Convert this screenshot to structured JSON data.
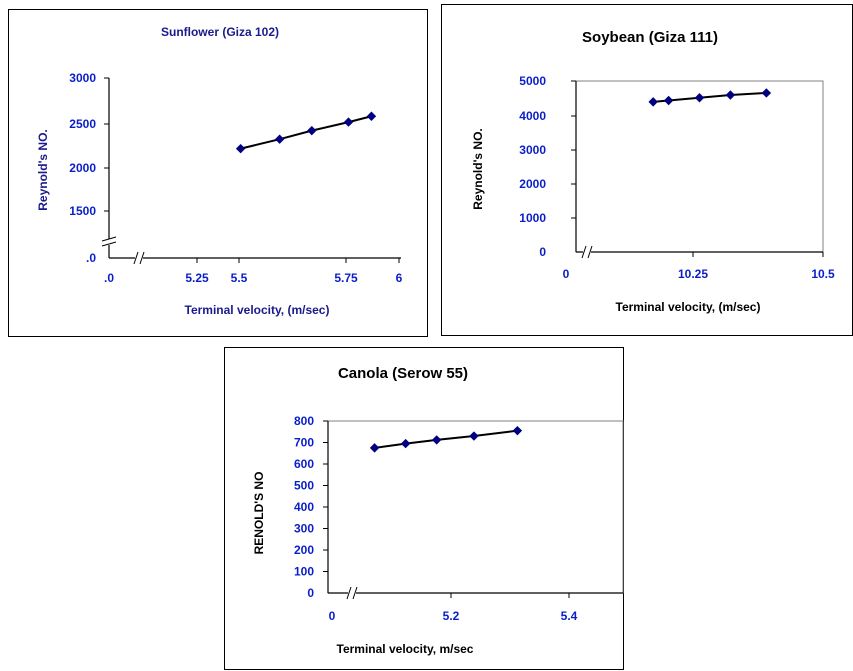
{
  "chart_data": [
    {
      "type": "line",
      "title": "Sunflower (Giza 102)",
      "xlabel": "Terminal velocity, (m/sec)",
      "ylabel": "Reynold's NO.",
      "x_ticks": [
        ".0",
        "5.25",
        "5.5",
        "5.75",
        "6"
      ],
      "y_ticks": [
        ".0",
        "1500",
        "2000",
        "2500",
        "3000"
      ],
      "xlim": [
        5.12,
        6.0
      ],
      "ylim": [
        1000,
        3000
      ],
      "grid": false,
      "axis_break": true,
      "x": [
        5.31,
        5.48,
        5.62,
        5.78,
        5.88
      ],
      "series": [
        {
          "values": [
            2215,
            2320,
            2415,
            2510,
            2575
          ],
          "color": "#000080"
        }
      ]
    },
    {
      "type": "line",
      "title": "Soybean (Giza 111)",
      "xlabel": "Terminal velocity, (m/sec)",
      "ylabel": "Reynold's NO.",
      "x_ticks": [
        "0",
        "10.25",
        "10.5"
      ],
      "y_ticks": [
        "0",
        "1000",
        "2000",
        "3000",
        "4000",
        "5000"
      ],
      "xlim": [
        10.02,
        10.5
      ],
      "ylim": [
        0,
        5000
      ],
      "grid": false,
      "axis_break": true,
      "x": [
        10.17,
        10.2,
        10.26,
        10.32,
        10.39
      ],
      "series": [
        {
          "values": [
            4390,
            4430,
            4510,
            4590,
            4650
          ],
          "color": "#000080"
        }
      ]
    },
    {
      "type": "line",
      "title": "Canola (Serow 55)",
      "xlabel": "Terminal velocity, m/sec",
      "ylabel": "RENOLD'S NO",
      "x_ticks": [
        "0",
        "5.2",
        "5.4"
      ],
      "y_ticks": [
        "0",
        "100",
        "200",
        "300",
        "400",
        "500",
        "600",
        "700",
        "800"
      ],
      "xlim": [
        5.025,
        5.5
      ],
      "ylim": [
        0,
        800
      ],
      "grid": false,
      "axis_break": true,
      "x": [
        5.1,
        5.15,
        5.2,
        5.26,
        5.33
      ],
      "series": [
        {
          "values": [
            675,
            695,
            712,
            730,
            755
          ],
          "color": "#000080"
        }
      ]
    }
  ]
}
